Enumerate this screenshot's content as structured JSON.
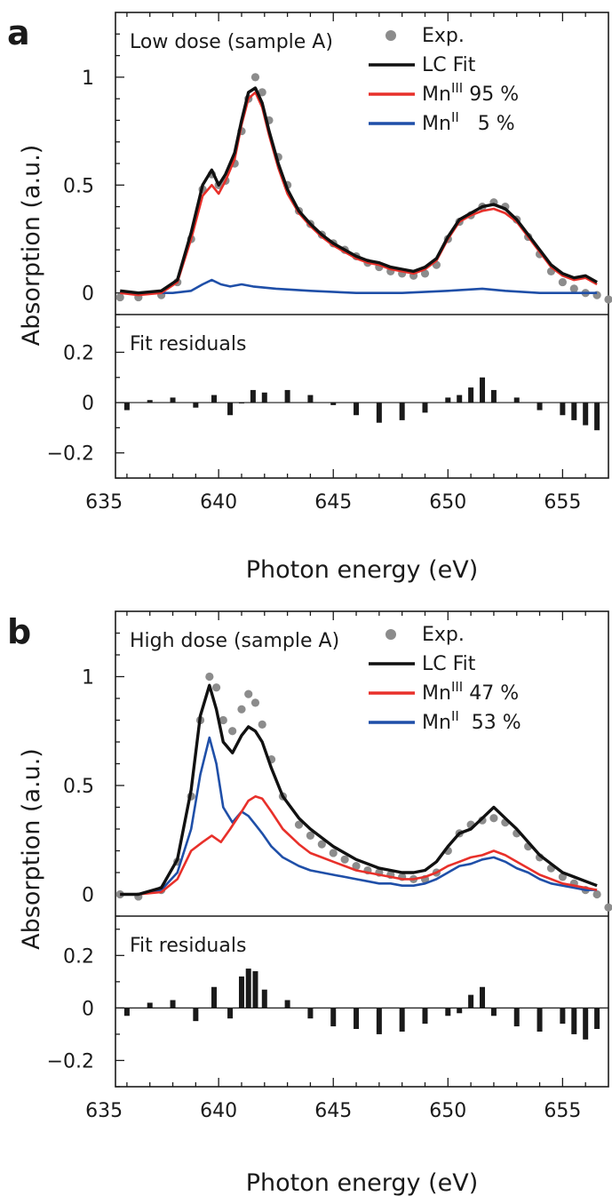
{
  "chart_data": [
    {
      "type": "line",
      "panel_label": "a",
      "annotation": "Low dose (sample A)",
      "residual_label": "Fit residuals",
      "xlabel": "Photon energy (eV)",
      "ylabel": "Absorption (a.u.)",
      "xlim": [
        635.5,
        657
      ],
      "ylim_main": [
        -0.1,
        1.3
      ],
      "ylim_residual": [
        -0.3,
        0.35
      ],
      "x_ticks": [
        "635",
        "640",
        "645",
        "650",
        "655"
      ],
      "y_ticks_main": [
        "0",
        "0.5",
        "1"
      ],
      "y_ticks_residual": [
        "−0.2",
        "0",
        "0.2"
      ],
      "legend": [
        {
          "key": "exp",
          "base": "Exp.",
          "sup": "",
          "tail": "",
          "color": "#8c8c8c",
          "marker": "dot"
        },
        {
          "key": "fit",
          "base": "LC Fit",
          "sup": "",
          "tail": "",
          "color": "#111111",
          "marker": "line"
        },
        {
          "key": "mn3",
          "base": "Mn",
          "sup": "III",
          "tail": " 95 %",
          "color": "#e8302a",
          "marker": "line"
        },
        {
          "key": "mn2",
          "base": "Mn",
          "sup": "II",
          "tail": "   5 %",
          "color": "#1f4fa8",
          "marker": "line"
        }
      ],
      "series": [
        {
          "key": "exp",
          "x": [
            635.7,
            636.5,
            637.5,
            638.2,
            638.8,
            639.3,
            639.7,
            640.0,
            640.3,
            640.7,
            641.0,
            641.3,
            641.6,
            641.9,
            642.2,
            642.6,
            643.0,
            643.5,
            644.0,
            644.5,
            645.0,
            645.5,
            646.0,
            646.5,
            647.0,
            647.5,
            648.0,
            648.5,
            649.0,
            649.5,
            650.0,
            650.5,
            651.0,
            651.5,
            652.0,
            652.5,
            653.0,
            653.5,
            654.0,
            654.5,
            655.0,
            655.5,
            656.0,
            656.5,
            657.0
          ],
          "y": [
            -0.02,
            -0.02,
            -0.01,
            0.05,
            0.25,
            0.48,
            0.55,
            0.5,
            0.52,
            0.6,
            0.75,
            0.9,
            1.0,
            0.93,
            0.8,
            0.63,
            0.5,
            0.38,
            0.32,
            0.27,
            0.23,
            0.2,
            0.17,
            0.14,
            0.12,
            0.1,
            0.09,
            0.08,
            0.09,
            0.13,
            0.25,
            0.33,
            0.36,
            0.4,
            0.42,
            0.4,
            0.34,
            0.26,
            0.18,
            0.1,
            0.05,
            0.02,
            0.0,
            -0.01,
            -0.03
          ]
        },
        {
          "key": "fit",
          "x": [
            635.7,
            636.5,
            637.5,
            638.2,
            638.8,
            639.3,
            639.7,
            640.0,
            640.3,
            640.7,
            641.0,
            641.3,
            641.6,
            641.9,
            642.2,
            642.6,
            643.0,
            643.5,
            644.0,
            644.5,
            645.0,
            645.5,
            646.0,
            646.5,
            647.0,
            647.5,
            648.0,
            648.5,
            649.0,
            649.5,
            650.0,
            650.5,
            651.0,
            651.5,
            652.0,
            652.5,
            653.0,
            653.5,
            654.0,
            654.5,
            655.0,
            655.5,
            656.0,
            656.5
          ],
          "y": [
            0.01,
            0.0,
            0.01,
            0.06,
            0.28,
            0.5,
            0.57,
            0.5,
            0.55,
            0.65,
            0.8,
            0.93,
            0.95,
            0.88,
            0.75,
            0.6,
            0.48,
            0.38,
            0.32,
            0.27,
            0.23,
            0.2,
            0.17,
            0.15,
            0.14,
            0.12,
            0.11,
            0.1,
            0.12,
            0.16,
            0.26,
            0.34,
            0.37,
            0.4,
            0.41,
            0.39,
            0.34,
            0.27,
            0.2,
            0.13,
            0.09,
            0.07,
            0.08,
            0.05
          ]
        },
        {
          "key": "mn3",
          "x": [
            635.7,
            636.5,
            637.5,
            638.2,
            638.8,
            639.3,
            639.7,
            640.0,
            640.3,
            640.7,
            641.0,
            641.3,
            641.6,
            641.9,
            642.2,
            642.6,
            643.0,
            643.5,
            644.0,
            644.5,
            645.0,
            645.5,
            646.0,
            646.5,
            647.0,
            647.5,
            648.0,
            648.5,
            649.0,
            649.5,
            650.0,
            650.5,
            651.0,
            651.5,
            652.0,
            652.5,
            653.0,
            653.5,
            654.0,
            654.5,
            655.0,
            655.5,
            656.0,
            656.5
          ],
          "y": [
            0.0,
            -0.01,
            0.0,
            0.05,
            0.25,
            0.45,
            0.5,
            0.46,
            0.52,
            0.62,
            0.78,
            0.9,
            0.93,
            0.86,
            0.73,
            0.58,
            0.46,
            0.37,
            0.31,
            0.26,
            0.22,
            0.19,
            0.16,
            0.14,
            0.13,
            0.11,
            0.1,
            0.09,
            0.11,
            0.15,
            0.25,
            0.33,
            0.36,
            0.38,
            0.39,
            0.37,
            0.33,
            0.26,
            0.19,
            0.12,
            0.08,
            0.06,
            0.07,
            0.04
          ]
        },
        {
          "key": "mn2",
          "x": [
            635.7,
            637.0,
            638.0,
            638.8,
            639.3,
            639.7,
            640.1,
            640.5,
            641.0,
            641.5,
            642.5,
            644.0,
            646.0,
            648.0,
            650.0,
            651.5,
            652.5,
            654.0,
            656.5
          ],
          "y": [
            0.0,
            0.0,
            0.0,
            0.01,
            0.04,
            0.06,
            0.04,
            0.03,
            0.04,
            0.03,
            0.02,
            0.01,
            0.0,
            0.0,
            0.01,
            0.02,
            0.01,
            0.0,
            0.0
          ]
        }
      ],
      "residuals": {
        "x": [
          636.0,
          637.0,
          638.0,
          639.0,
          639.8,
          640.5,
          641.0,
          641.5,
          642.0,
          643.0,
          644.0,
          645.0,
          646.0,
          647.0,
          648.0,
          649.0,
          650.0,
          650.5,
          651.0,
          651.5,
          652.0,
          653.0,
          654.0,
          655.0,
          655.5,
          656.0,
          656.5
        ],
        "y": [
          -0.03,
          0.01,
          0.02,
          -0.02,
          0.03,
          -0.05,
          0.0,
          0.05,
          0.04,
          0.05,
          0.03,
          -0.01,
          -0.05,
          -0.08,
          -0.07,
          -0.04,
          0.02,
          0.03,
          0.06,
          0.1,
          0.05,
          0.02,
          -0.03,
          -0.05,
          -0.07,
          -0.09,
          -0.11
        ]
      }
    },
    {
      "type": "line",
      "panel_label": "b",
      "annotation": "High dose (sample A)",
      "residual_label": "Fit residuals",
      "xlabel": "Photon energy (eV)",
      "ylabel": "Absorption (a.u.)",
      "xlim": [
        635.5,
        657
      ],
      "ylim_main": [
        -0.1,
        1.3
      ],
      "ylim_residual": [
        -0.3,
        0.35
      ],
      "x_ticks": [
        "635",
        "640",
        "645",
        "650",
        "655"
      ],
      "y_ticks_main": [
        "0",
        "0.5",
        "1"
      ],
      "y_ticks_residual": [
        "−0.2",
        "0",
        "0.2"
      ],
      "legend": [
        {
          "key": "exp",
          "base": "Exp.",
          "sup": "",
          "tail": "",
          "color": "#8c8c8c",
          "marker": "dot"
        },
        {
          "key": "fit",
          "base": "LC Fit",
          "sup": "",
          "tail": "",
          "color": "#111111",
          "marker": "line"
        },
        {
          "key": "mn3",
          "base": "Mn",
          "sup": "III",
          "tail": " 47 %",
          "color": "#e8302a",
          "marker": "line"
        },
        {
          "key": "mn2",
          "base": "Mn",
          "sup": "II",
          "tail": "  53 %",
          "color": "#1f4fa8",
          "marker": "line"
        }
      ],
      "series": [
        {
          "key": "exp",
          "x": [
            635.7,
            636.5,
            637.5,
            638.2,
            638.8,
            639.2,
            639.6,
            639.9,
            640.2,
            640.6,
            641.0,
            641.3,
            641.6,
            641.9,
            642.3,
            642.8,
            643.5,
            644.0,
            644.5,
            645.0,
            645.5,
            646.0,
            646.5,
            647.0,
            647.5,
            648.0,
            648.5,
            649.0,
            649.5,
            650.0,
            650.5,
            651.0,
            651.5,
            652.0,
            652.5,
            653.0,
            653.5,
            654.0,
            654.5,
            655.0,
            655.5,
            656.0,
            656.5,
            657.0
          ],
          "y": [
            0.0,
            -0.01,
            0.02,
            0.15,
            0.45,
            0.8,
            1.0,
            0.95,
            0.8,
            0.75,
            0.85,
            0.92,
            0.88,
            0.78,
            0.62,
            0.45,
            0.32,
            0.27,
            0.23,
            0.19,
            0.16,
            0.13,
            0.11,
            0.1,
            0.09,
            0.08,
            0.07,
            0.07,
            0.1,
            0.2,
            0.28,
            0.32,
            0.34,
            0.35,
            0.33,
            0.28,
            0.22,
            0.17,
            0.12,
            0.08,
            0.05,
            0.02,
            0.0,
            -0.06
          ]
        },
        {
          "key": "fit",
          "x": [
            635.7,
            636.5,
            637.5,
            638.2,
            638.8,
            639.2,
            639.6,
            639.9,
            640.2,
            640.6,
            641.0,
            641.3,
            641.6,
            641.9,
            642.3,
            642.8,
            643.5,
            644.0,
            644.5,
            645.0,
            645.5,
            646.0,
            646.5,
            647.0,
            647.5,
            648.0,
            648.5,
            649.0,
            649.5,
            650.0,
            650.5,
            651.0,
            651.5,
            652.0,
            652.5,
            653.0,
            653.5,
            654.0,
            654.5,
            655.0,
            655.5,
            656.0,
            656.5
          ],
          "y": [
            0.0,
            0.0,
            0.03,
            0.16,
            0.48,
            0.82,
            0.96,
            0.85,
            0.7,
            0.65,
            0.73,
            0.77,
            0.75,
            0.7,
            0.58,
            0.45,
            0.35,
            0.3,
            0.26,
            0.22,
            0.19,
            0.16,
            0.14,
            0.12,
            0.11,
            0.1,
            0.1,
            0.11,
            0.15,
            0.22,
            0.28,
            0.3,
            0.35,
            0.4,
            0.35,
            0.3,
            0.24,
            0.18,
            0.14,
            0.1,
            0.08,
            0.06,
            0.04
          ]
        },
        {
          "key": "mn3",
          "x": [
            635.7,
            636.5,
            637.5,
            638.2,
            638.8,
            639.3,
            639.7,
            640.1,
            640.5,
            641.0,
            641.3,
            641.6,
            641.9,
            642.3,
            642.8,
            643.5,
            644.0,
            644.5,
            645.0,
            645.5,
            646.0,
            646.5,
            647.0,
            647.5,
            648.0,
            648.5,
            649.0,
            649.5,
            650.0,
            650.5,
            651.0,
            651.5,
            652.0,
            652.5,
            653.0,
            653.5,
            654.0,
            654.5,
            655.0,
            655.5,
            656.0,
            656.5
          ],
          "y": [
            0.0,
            0.0,
            0.01,
            0.07,
            0.2,
            0.24,
            0.27,
            0.24,
            0.3,
            0.38,
            0.43,
            0.45,
            0.44,
            0.38,
            0.3,
            0.23,
            0.19,
            0.17,
            0.15,
            0.13,
            0.11,
            0.1,
            0.09,
            0.08,
            0.07,
            0.07,
            0.08,
            0.1,
            0.13,
            0.15,
            0.17,
            0.18,
            0.2,
            0.18,
            0.15,
            0.12,
            0.09,
            0.07,
            0.05,
            0.04,
            0.03,
            0.02
          ]
        },
        {
          "key": "mn2",
          "x": [
            635.7,
            636.5,
            637.5,
            638.2,
            638.8,
            639.2,
            639.6,
            639.9,
            640.2,
            640.6,
            641.0,
            641.3,
            641.6,
            641.9,
            642.3,
            642.8,
            643.5,
            644.0,
            644.5,
            645.0,
            645.5,
            646.0,
            646.5,
            647.0,
            647.5,
            648.0,
            648.5,
            649.0,
            649.5,
            650.0,
            650.5,
            651.0,
            651.5,
            652.0,
            652.5,
            653.0,
            653.5,
            654.0,
            654.5,
            655.0,
            655.5,
            656.0,
            656.5
          ],
          "y": [
            0.0,
            0.0,
            0.02,
            0.1,
            0.3,
            0.55,
            0.72,
            0.6,
            0.4,
            0.33,
            0.38,
            0.36,
            0.32,
            0.28,
            0.22,
            0.17,
            0.13,
            0.11,
            0.1,
            0.09,
            0.08,
            0.07,
            0.06,
            0.05,
            0.05,
            0.04,
            0.04,
            0.05,
            0.07,
            0.1,
            0.13,
            0.14,
            0.16,
            0.17,
            0.15,
            0.12,
            0.1,
            0.07,
            0.05,
            0.04,
            0.03,
            0.02,
            0.02
          ]
        }
      ],
      "residuals": {
        "x": [
          636.0,
          637.0,
          638.0,
          639.0,
          639.8,
          640.5,
          641.0,
          641.3,
          641.6,
          642.0,
          643.0,
          644.0,
          645.0,
          646.0,
          647.0,
          648.0,
          649.0,
          650.0,
          650.5,
          651.0,
          651.5,
          652.0,
          653.0,
          654.0,
          655.0,
          655.5,
          656.0,
          656.5
        ],
        "y": [
          -0.03,
          0.02,
          0.03,
          -0.05,
          0.08,
          -0.04,
          0.12,
          0.15,
          0.14,
          0.07,
          0.03,
          -0.04,
          -0.07,
          -0.08,
          -0.1,
          -0.09,
          -0.06,
          -0.03,
          -0.02,
          0.05,
          0.08,
          -0.03,
          -0.07,
          -0.09,
          -0.06,
          -0.1,
          -0.12,
          -0.08
        ]
      }
    }
  ]
}
